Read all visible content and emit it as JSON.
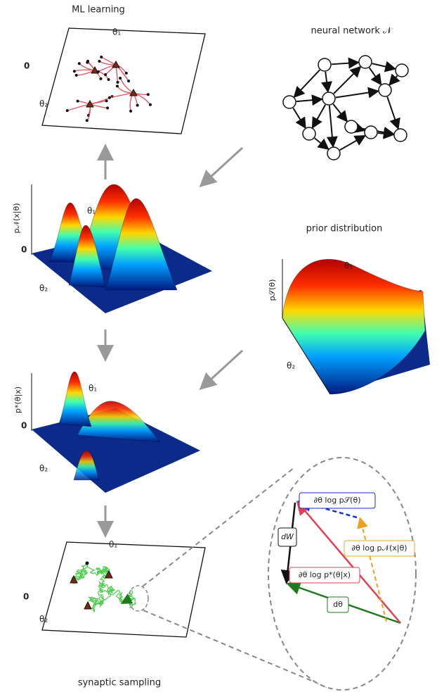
{
  "panels": {
    "ml_learning": {
      "title": "ML learning",
      "theta1": "θ₁",
      "theta2": "θ₂",
      "origin": "0"
    },
    "neural_network": {
      "title": "neural network 𝒩"
    },
    "likelihood": {
      "y_label": "p𝒩(x|θ)",
      "theta1": "θ₁",
      "theta2": "θ₂",
      "origin": "0"
    },
    "prior": {
      "title": "prior distribution",
      "y_label": "p𝒮(θ)",
      "theta1": "θ₁",
      "theta2": "θ₂"
    },
    "posterior": {
      "y_label": "p*(θ|x)",
      "theta1": "θ₁",
      "theta2": "θ₂",
      "origin": "0"
    },
    "synaptic_sampling": {
      "title": "synaptic sampling",
      "theta1": "θ₁",
      "theta2": "θ₂",
      "origin": "0"
    },
    "zoom": {
      "prior_gradient": "∂θ log p𝒮(θ)",
      "dW": "dW",
      "likelihood_gradient": "∂θ log p𝒩(x|θ)",
      "posterior_gradient": "∂θ log p*(θ|x)",
      "dtheta": "dθ"
    }
  }
}
